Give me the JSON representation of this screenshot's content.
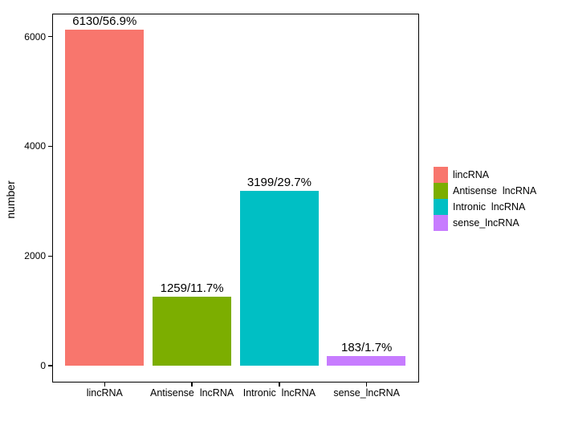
{
  "chart_data": {
    "type": "bar",
    "title": "",
    "xlabel": "",
    "ylabel": "number",
    "ylim": [
      -306,
      6436
    ],
    "yticks": [
      0,
      2000,
      4000,
      6000
    ],
    "ytick_labels": [
      "0",
      "2000",
      "4000",
      "6000"
    ],
    "grid": false,
    "legend_position": "right",
    "categories": [
      "lincRNA",
      "Antisense  lncRNA",
      "Intronic  lncRNA",
      "sense_lncRNA"
    ],
    "values": [
      6130,
      1259,
      3199,
      183
    ],
    "bar_labels": [
      "6130/56.9%",
      "1259/11.7%",
      "3199/29.7%",
      "183/1.7%"
    ],
    "colors": [
      "#F8766D",
      "#7CAE00",
      "#00BFC4",
      "#C77CFF"
    ],
    "legend": [
      {
        "label": "lincRNA",
        "color": "#F8766D"
      },
      {
        "label": "Antisense  lncRNA",
        "color": "#7CAE00"
      },
      {
        "label": "Intronic  lncRNA",
        "color": "#00BFC4"
      },
      {
        "label": "sense_lncRNA",
        "color": "#C77CFF"
      }
    ],
    "axis_color": "#000000",
    "panel_background": "#ffffff"
  }
}
